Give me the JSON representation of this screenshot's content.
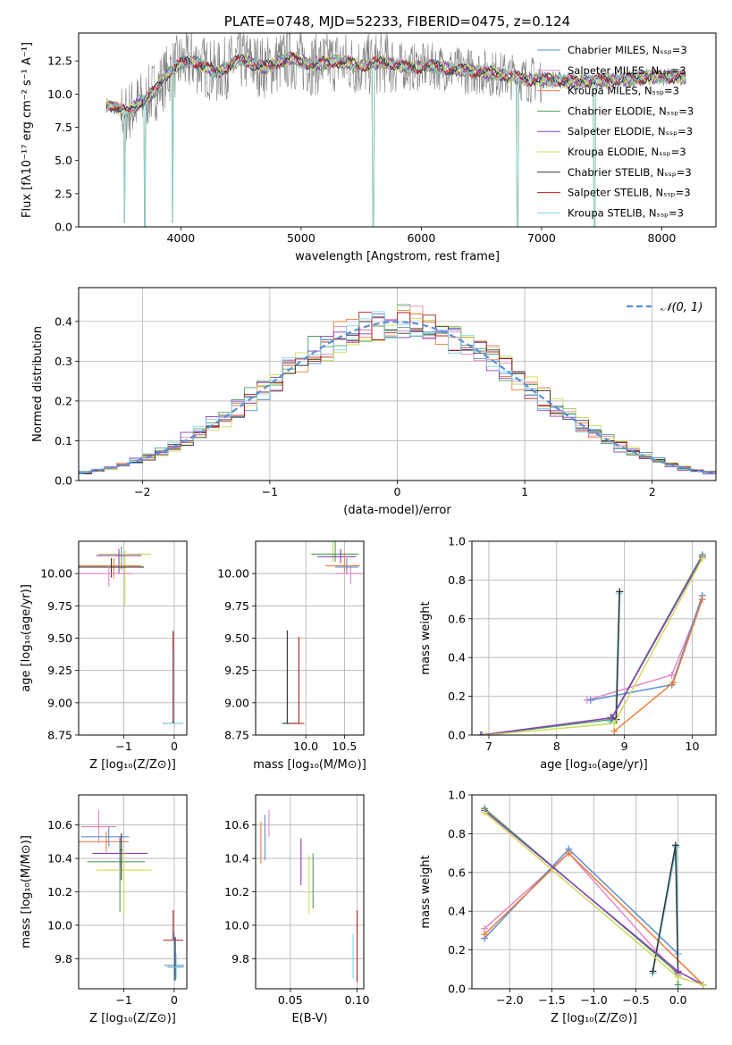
{
  "colors": {
    "c1": "#5b8fd6",
    "c2": "#e887c4",
    "c3": "#ef7d3a",
    "c4": "#4ea060",
    "c5": "#8a3dbb",
    "c6": "#cddc5a",
    "c7": "#333333",
    "c8": "#b31d1d",
    "c9": "#7fd7e3",
    "data": "#7f7f7f",
    "normal": "#5b8fd6"
  },
  "chart_data": [
    {
      "id": "spectrum",
      "type": "line",
      "title": "PLATE=0748, MJD=52233, FIBERID=0475, z=0.124",
      "xlabel": "wavelength [Angstrom, rest frame]",
      "ylabel": "Flux [fλ10⁻¹⁷ erg cm⁻² s⁻¹ A⁻¹]",
      "xlim": [
        3150,
        8450
      ],
      "ylim": [
        0,
        14.6
      ],
      "xticks": [
        4000,
        5000,
        6000,
        7000,
        8000
      ],
      "xticklabels": [
        "4000",
        "5000",
        "6000",
        "7000",
        "8000"
      ],
      "yticks": [
        0,
        2.5,
        5,
        7.5,
        10,
        12.5
      ],
      "yticklabels": [
        "0.0",
        "2.5",
        "5.0",
        "7.5",
        "10.0",
        "12.5"
      ],
      "grid": false,
      "legend_position": "upper right",
      "legend": [
        "Chabrier MILES, Nₛₛₚ=3",
        "Salpeter MILES, Nₛₛₚ=3",
        "Kroupa MILES, Nₛₛₚ=3",
        "Chabrier ELODIE, Nₛₛₚ=3",
        "Salpeter ELODIE, Nₛₛₚ=3",
        "Kroupa ELODIE, Nₛₛₚ=3",
        "Chabrier STELIB, Nₛₛₚ=3",
        "Salpeter STELIB, Nₛₛₚ=3",
        "Kroupa STELIB, Nₛₛₚ=3"
      ],
      "continuum_x": [
        3400,
        3550,
        3700,
        3800,
        3900,
        4000,
        4100,
        4300,
        4500,
        4700,
        4900,
        5100,
        5300,
        5500,
        5700,
        5900,
        6100,
        6300,
        6500,
        6700,
        6900,
        7100,
        7300,
        7500,
        7700,
        7900,
        8100,
        8200
      ],
      "continuum_y": [
        9.2,
        8.6,
        9.6,
        10.4,
        11.6,
        12.3,
        12.5,
        11.6,
        12.6,
        12.0,
        12.7,
        12.2,
        12.5,
        12.1,
        12.4,
        12.0,
        12.1,
        11.8,
        11.7,
        11.4,
        11.1,
        11.1,
        10.9,
        11.0,
        11.1,
        11.3,
        11.3,
        11.2
      ],
      "dips": [
        [
          3530,
          0.3
        ],
        [
          3700,
          0.0
        ],
        [
          3930,
          0.3
        ],
        [
          5600,
          0.0
        ],
        [
          6800,
          0.0
        ],
        [
          7440,
          0.0
        ]
      ]
    },
    {
      "id": "residuals",
      "type": "line",
      "xlabel": "(data-model)/error",
      "ylabel": "Normed distribution",
      "xlim": [
        -2.5,
        2.5
      ],
      "ylim": [
        0,
        0.485
      ],
      "xticks": [
        -2,
        -1,
        0,
        1,
        2
      ],
      "xticklabels": [
        "−2",
        "−1",
        "0",
        "1",
        "2"
      ],
      "yticks": [
        0,
        0.1,
        0.2,
        0.3,
        0.4
      ],
      "yticklabels": [
        "0.0",
        "0.1",
        "0.2",
        "0.3",
        "0.4"
      ],
      "grid": true,
      "legend": [
        "𝒩(0, 1)"
      ],
      "legend_position": "upper right",
      "bin_width": 0.1
    },
    {
      "id": "age_vs_Z",
      "type": "scatter",
      "xlabel": "Z [log₁₀(Z/Z⊙)]",
      "ylabel": "age  [log₁₀(age/yr)]",
      "xlim": [
        -1.9,
        0.25
      ],
      "ylim": [
        8.75,
        10.25
      ],
      "xticks": [
        -1,
        0
      ],
      "xticklabels": [
        "−1",
        "0"
      ],
      "yticks": [
        8.75,
        9.0,
        9.25,
        9.5,
        9.75,
        10.0
      ],
      "yticklabels": [
        "8.75",
        "9.00",
        "9.25",
        "9.50",
        "9.75",
        "10.00"
      ],
      "grid": true,
      "crosses": [
        {
          "c": "c4",
          "x": -1.05,
          "y": 10.15,
          "xe": [
            0.4,
            0.45
          ],
          "ye": [
            0.12,
            0.06
          ]
        },
        {
          "c": "c6",
          "x": -0.98,
          "y": 10.15,
          "xe": [
            0.52,
            0.52
          ],
          "ye": [
            0.4,
            0.03
          ]
        },
        {
          "c": "c5",
          "x": -1.1,
          "y": 10.14,
          "xe": [
            0.45,
            0.45
          ],
          "ye": [
            0.14,
            0.05
          ]
        },
        {
          "c": "c3",
          "x": -1.2,
          "y": 10.06,
          "xe": [
            0.7,
            0.55
          ],
          "ye": [
            0.1,
            0.06
          ]
        },
        {
          "c": "c7",
          "x": -1.25,
          "y": 10.05,
          "xe": [
            0.65,
            0.65
          ],
          "ye": [
            0.08,
            0.07
          ]
        },
        {
          "c": "c2",
          "x": -1.3,
          "y": 10.0,
          "xe": [
            0.58,
            0.48
          ],
          "ye": [
            0.1,
            0.06
          ]
        },
        {
          "c": "c1",
          "x": -0.02,
          "y": 8.84,
          "xe": [
            0.2,
            0.2
          ],
          "ye": [
            0.0,
            0.72
          ]
        },
        {
          "c": "c9",
          "x": 0.0,
          "y": 8.84,
          "xe": [
            0.18,
            0.18
          ],
          "ye": [
            0.0,
            0.55
          ]
        },
        {
          "c": "c8",
          "x": -0.02,
          "y": 8.85,
          "xe": [
            0.02,
            0.02
          ],
          "ye": [
            0.0,
            0.7
          ]
        }
      ]
    },
    {
      "id": "age_vs_mass",
      "type": "scatter",
      "xlabel": "mass [log₁₀(M/M⊙)]",
      "ylabel": "",
      "xlim": [
        9.35,
        10.75
      ],
      "ylim": [
        8.75,
        10.25
      ],
      "xticks": [
        10,
        10.5
      ],
      "xticklabels": [
        "10.0",
        "10.5"
      ],
      "yticks": [
        8.75,
        9.0,
        9.25,
        9.5,
        9.75,
        10.0
      ],
      "yticklabels": [
        "8.75",
        "9.00",
        "9.25",
        "9.50",
        "9.75",
        "10.00"
      ],
      "grid": true,
      "crosses": [
        {
          "c": "c6",
          "x": 10.35,
          "y": 10.15,
          "xe": [
            0.3,
            0.35
          ],
          "ye": [
            0.06,
            0.4
          ]
        },
        {
          "c": "c4",
          "x": 10.38,
          "y": 10.15,
          "xe": [
            0.3,
            0.3
          ],
          "ye": [
            0.06,
            0.13
          ]
        },
        {
          "c": "c5",
          "x": 10.45,
          "y": 10.13,
          "xe": [
            0.3,
            0.2
          ],
          "ye": [
            0.05,
            0.06
          ]
        },
        {
          "c": "c3",
          "x": 10.5,
          "y": 10.06,
          "xe": [
            0.25,
            0.2
          ],
          "ye": [
            0.05,
            0.1
          ]
        },
        {
          "c": "c2",
          "x": 10.58,
          "y": 10.0,
          "xe": [
            0.2,
            0.2
          ],
          "ye": [
            0.08,
            0.06
          ]
        },
        {
          "c": "c1",
          "x": 10.53,
          "y": 10.05,
          "xe": [
            0.15,
            0.15
          ],
          "ye": [
            0.05,
            0.07
          ]
        },
        {
          "c": "c9",
          "x": 9.76,
          "y": 8.84,
          "xe": [
            0.08,
            0.08
          ],
          "ye": [
            0.0,
            0.72
          ]
        },
        {
          "c": "c7",
          "x": 9.76,
          "y": 8.84,
          "xe": [
            0.06,
            0.15
          ],
          "ye": [
            0.0,
            0.72
          ]
        },
        {
          "c": "c8",
          "x": 9.91,
          "y": 8.84,
          "xe": [
            0.1,
            0.07
          ],
          "ye": [
            0.0,
            0.67
          ]
        }
      ]
    },
    {
      "id": "weight_vs_age",
      "type": "line",
      "xlabel": "age  [log₁₀(age/yr)]",
      "ylabel": "mass weight",
      "xlim": [
        6.75,
        10.35
      ],
      "ylim": [
        0,
        1.0
      ],
      "xticks": [
        7,
        8,
        9,
        10
      ],
      "xticklabels": [
        "7",
        "8",
        "9",
        "10"
      ],
      "yticks": [
        0,
        0.2,
        0.4,
        0.6,
        0.8,
        1.0
      ],
      "yticklabels": [
        "0.0",
        "0.2",
        "0.4",
        "0.6",
        "0.8",
        "1.0"
      ],
      "grid": true,
      "series": [
        {
          "c": "c2",
          "x": [
            8.45,
            9.7,
            10.15
          ],
          "y": [
            0.18,
            0.31,
            0.7
          ]
        },
        {
          "c": "c1",
          "x": [
            8.5,
            9.7,
            10.15
          ],
          "y": [
            0.18,
            0.26,
            0.72
          ]
        },
        {
          "c": "c3",
          "x": [
            8.85,
            9.72,
            10.15
          ],
          "y": [
            0.02,
            0.27,
            0.7
          ]
        },
        {
          "c": "c9",
          "x": [
            8.78,
            8.87,
            8.92
          ],
          "y": [
            0.07,
            0.08,
            0.73
          ]
        },
        {
          "c": "c7",
          "x": [
            8.8,
            8.88,
            8.93
          ],
          "y": [
            0.09,
            0.08,
            0.74
          ]
        },
        {
          "c": "c4",
          "x": [
            6.9,
            8.8,
            10.15
          ],
          "y": [
            0.0,
            0.08,
            0.93
          ]
        },
        {
          "c": "c5",
          "x": [
            6.88,
            8.82,
            10.15
          ],
          "y": [
            0.0,
            0.09,
            0.92
          ]
        },
        {
          "c": "c6",
          "x": [
            6.95,
            8.85,
            10.15
          ],
          "y": [
            0.0,
            0.06,
            0.91
          ]
        }
      ]
    },
    {
      "id": "mass_vs_Z",
      "type": "scatter",
      "xlabel": "Z [log₁₀(Z/Z⊙)]",
      "ylabel": "mass [log₁₀(M/M⊙)]",
      "xlim": [
        -1.9,
        0.25
      ],
      "ylim": [
        9.62,
        10.78
      ],
      "xticks": [
        -1,
        0
      ],
      "xticklabels": [
        "−1",
        "0"
      ],
      "yticks": [
        9.8,
        10.0,
        10.2,
        10.4,
        10.6
      ],
      "yticklabels": [
        "9.8",
        "10.0",
        "10.2",
        "10.4",
        "10.6"
      ],
      "grid": true,
      "crosses": [
        {
          "c": "c2",
          "x": -1.5,
          "y": 10.59,
          "xe": [
            0.35,
            0.35
          ],
          "ye": [
            0.1,
            0.1
          ]
        },
        {
          "c": "c1",
          "x": -1.3,
          "y": 10.53,
          "xe": [
            0.55,
            0.4
          ],
          "ye": [
            0.06,
            0.06
          ]
        },
        {
          "c": "c3",
          "x": -1.35,
          "y": 10.5,
          "xe": [
            0.55,
            0.45
          ],
          "ye": [
            0.06,
            0.06
          ]
        },
        {
          "c": "c5",
          "x": -1.08,
          "y": 10.43,
          "xe": [
            0.55,
            0.55
          ],
          "ye": [
            0.1,
            0.1
          ]
        },
        {
          "c": "c4",
          "x": -1.08,
          "y": 10.38,
          "xe": [
            0.65,
            0.5
          ],
          "ye": [
            0.3,
            0.12
          ]
        },
        {
          "c": "c6",
          "x": -1.0,
          "y": 10.33,
          "xe": [
            0.55,
            0.55
          ],
          "ye": [
            0.26,
            0.12
          ]
        },
        {
          "c": "c7",
          "x": -1.05,
          "y": 10.45,
          "xe": [
            0.02,
            0.02
          ],
          "ye": [
            0.18,
            0.1
          ]
        },
        {
          "c": "c8",
          "x": -0.02,
          "y": 9.91,
          "xe": [
            0.2,
            0.2
          ],
          "ye": [
            0.0,
            0.18
          ]
        },
        {
          "c": "c1",
          "x": 0.0,
          "y": 9.76,
          "xe": [
            0.2,
            0.2
          ],
          "ye": [
            0.09,
            0.2
          ]
        },
        {
          "c": "c7",
          "x": 0.02,
          "y": 9.75,
          "xe": [
            0.15,
            0.15
          ],
          "ye": [
            0.08,
            0.18
          ]
        },
        {
          "c": "c9",
          "x": 0.04,
          "y": 9.75,
          "xe": [
            0.16,
            0.16
          ],
          "ye": [
            0.07,
            0.08
          ]
        }
      ]
    },
    {
      "id": "mass_vs_ebv",
      "type": "scatter",
      "xlabel": "E(B-V)",
      "ylabel": "",
      "xlim": [
        0.024,
        0.105
      ],
      "ylim": [
        9.62,
        10.78
      ],
      "xticks": [
        0.05,
        0.1
      ],
      "xticklabels": [
        "0.05",
        "0.10"
      ],
      "yticks": [
        9.8,
        10.0,
        10.2,
        10.4,
        10.6
      ],
      "yticklabels": [
        "9.8",
        "10.0",
        "10.2",
        "10.4",
        "10.6"
      ],
      "grid": true,
      "bars": [
        {
          "c": "c3",
          "x": 0.028,
          "lo": 10.37,
          "hi": 10.62
        },
        {
          "c": "c1",
          "x": 0.031,
          "lo": 10.39,
          "hi": 10.66
        },
        {
          "c": "c2",
          "x": 0.034,
          "lo": 10.53,
          "hi": 10.69
        },
        {
          "c": "c5",
          "x": 0.058,
          "lo": 10.24,
          "hi": 10.52
        },
        {
          "c": "c6",
          "x": 0.064,
          "lo": 10.07,
          "hi": 10.42
        },
        {
          "c": "c4",
          "x": 0.067,
          "lo": 10.1,
          "hi": 10.43
        },
        {
          "c": "c9",
          "x": 0.097,
          "lo": 9.68,
          "hi": 9.95
        },
        {
          "c": "c8",
          "x": 0.1,
          "lo": 9.66,
          "hi": 10.09
        }
      ]
    },
    {
      "id": "weight_vs_Z",
      "type": "line",
      "xlabel": "Z [log₁₀(Z/Z⊙)]",
      "ylabel": "mass weight",
      "xlim": [
        -2.45,
        0.45
      ],
      "ylim": [
        0,
        1.0
      ],
      "xticks": [
        -2,
        -1.5,
        -1,
        -0.5,
        0
      ],
      "xticklabels": [
        "−2.0",
        "−1.5",
        "−1.0",
        "−0.5",
        "0.0"
      ],
      "yticks": [
        0,
        0.2,
        0.4,
        0.6,
        0.8,
        1.0
      ],
      "yticklabels": [
        "0.0",
        "0.2",
        "0.4",
        "0.6",
        "0.8",
        "1.0"
      ],
      "grid": true,
      "series": [
        {
          "c": "c2",
          "x": [
            -2.3,
            -1.3,
            0.0
          ],
          "y": [
            0.31,
            0.7,
            0.07
          ]
        },
        {
          "c": "c1",
          "x": [
            -2.3,
            -1.3,
            0.0
          ],
          "y": [
            0.26,
            0.72,
            0.18
          ]
        },
        {
          "c": "c3",
          "x": [
            -2.3,
            -1.3,
            0.3
          ],
          "y": [
            0.28,
            0.7,
            0.02
          ]
        },
        {
          "c": "c9",
          "x": [
            -0.3,
            -0.02,
            0.0
          ],
          "y": [
            0.08,
            0.73,
            0.18
          ]
        },
        {
          "c": "c7",
          "x": [
            -0.3,
            -0.03,
            0.0
          ],
          "y": [
            0.09,
            0.74,
            0.08
          ]
        },
        {
          "c": "c4",
          "x": [
            -2.3,
            0.0,
            0.0
          ],
          "y": [
            0.93,
            0.08,
            0.02
          ]
        },
        {
          "c": "c5",
          "x": [
            -2.3,
            0.0,
            0.3
          ],
          "y": [
            0.92,
            0.09,
            0.02
          ]
        },
        {
          "c": "c6",
          "x": [
            -2.3,
            0.0,
            0.3
          ],
          "y": [
            0.91,
            0.06,
            0.02
          ]
        }
      ]
    }
  ]
}
